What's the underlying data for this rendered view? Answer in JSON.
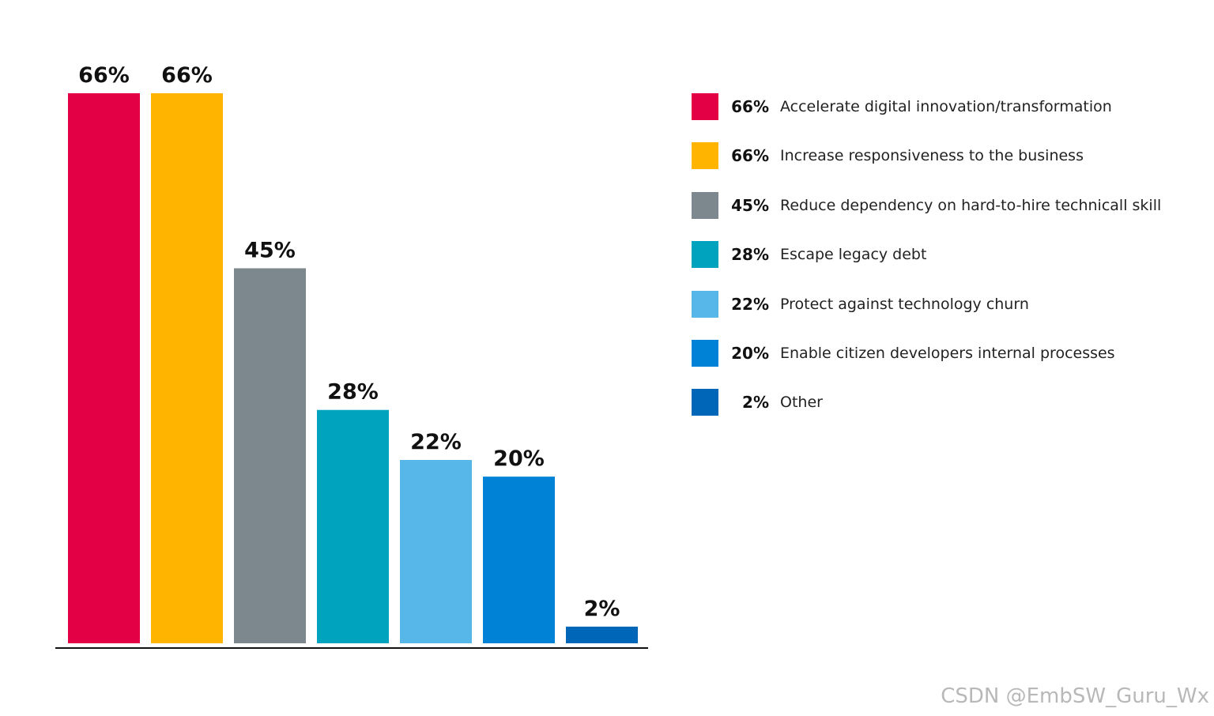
{
  "chart_data": {
    "type": "bar",
    "categories": [
      "Accelerate digital innovation/transformation",
      "Increase responsiveness to the business",
      "Reduce dependency on hard-to-hire technicall skill",
      "Escape legacy debt",
      "Protect against technology churn",
      "Enable citizen developers internal processes",
      "Other"
    ],
    "values": [
      66,
      66,
      45,
      28,
      22,
      20,
      2
    ],
    "value_labels": [
      "66%",
      "66%",
      "45%",
      "28%",
      "22%",
      "20%",
      "2%"
    ],
    "colors": [
      "#e30045",
      "#ffb400",
      "#7d888e",
      "#00a3bd",
      "#56b7e8",
      "#0083d6",
      "#0066b8"
    ],
    "unit": "%",
    "ylim": [
      0,
      66
    ],
    "grid": false,
    "legend_placement": "right"
  },
  "legend": {
    "items": [
      {
        "value": "66%",
        "text": "Accelerate digital innovation/transformation",
        "color": "#e30045"
      },
      {
        "value": "66%",
        "text": "Increase responsiveness to the business",
        "color": "#ffb400"
      },
      {
        "value": "45%",
        "text": "Reduce dependency on hard-to-hire technicall skill",
        "color": "#7d888e"
      },
      {
        "value": "28%",
        "text": "Escape legacy debt",
        "color": "#00a3bd"
      },
      {
        "value": "22%",
        "text": "Protect against technology churn",
        "color": "#56b7e8"
      },
      {
        "value": "20%",
        "text": "Enable citizen developers internal processes",
        "color": "#0083d6"
      },
      {
        "value": "2%",
        "text": "Other",
        "color": "#0066b8"
      }
    ]
  },
  "watermark": {
    "text": "CSDN @EmbSW_Guru_Wx"
  }
}
